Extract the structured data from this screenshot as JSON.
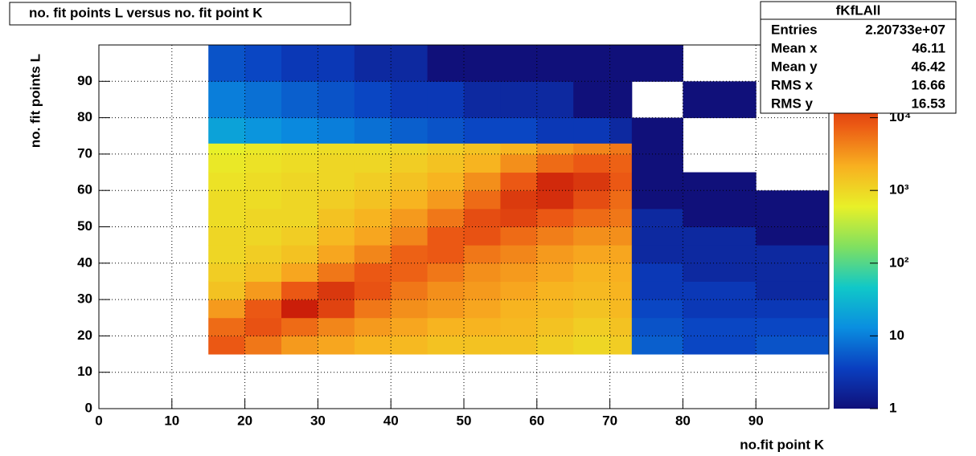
{
  "chart_data": {
    "type": "heatmap",
    "title": "no. fit points L versus no. fit point K",
    "x_label": "no.fit point K",
    "y_label": "no. fit points  L",
    "xlim": [
      0,
      100
    ],
    "ylim": [
      0,
      100
    ],
    "xticks": [
      0,
      10,
      20,
      30,
      40,
      50,
      60,
      70,
      80,
      90
    ],
    "yticks": [
      0,
      10,
      20,
      30,
      40,
      50,
      60,
      70,
      80,
      90
    ],
    "grid": true,
    "log_z": true,
    "zlim": [
      1,
      100000
    ],
    "zticks": [
      1,
      10,
      {
        "value": 100,
        "label": "10²"
      },
      {
        "value": 1000,
        "label": "10³"
      },
      {
        "value": 10000,
        "label": "10⁴"
      }
    ],
    "palette": [
      "#10107a",
      "#0a3fc0",
      "#0a8ee0",
      "#10c8c8",
      "#80e060",
      "#e8f028",
      "#f8b020",
      "#ec5a14",
      "#c81808",
      "#700000"
    ],
    "xbins": [
      15,
      20,
      25,
      30,
      35,
      40,
      45,
      50,
      55,
      60,
      65,
      70,
      73,
      80,
      90,
      100
    ],
    "ybins": [
      15,
      20,
      25,
      30,
      35,
      40,
      45,
      50,
      55,
      60,
      65,
      70,
      73,
      80,
      90,
      100
    ],
    "z": [
      [
        8000,
        5000,
        3000,
        2500,
        2000,
        1800,
        1500,
        1500,
        1500,
        1200,
        1000,
        1200,
        6,
        4,
        5
      ],
      [
        6000,
        9000,
        6000,
        4000,
        3000,
        2500,
        2000,
        2000,
        1800,
        1500,
        1200,
        1500,
        5,
        4,
        4
      ],
      [
        3000,
        8000,
        25000,
        12000,
        5000,
        3500,
        3000,
        2500,
        2000,
        1800,
        1500,
        1800,
        4,
        3,
        3
      ],
      [
        1500,
        3000,
        8000,
        15000,
        9000,
        5000,
        3500,
        3000,
        2500,
        2000,
        1800,
        2000,
        3,
        3,
        2
      ],
      [
        1200,
        1500,
        2500,
        5000,
        8000,
        7000,
        5000,
        3500,
        3000,
        2500,
        2000,
        2200,
        3,
        2,
        2
      ],
      [
        1000,
        1200,
        1500,
        2500,
        4000,
        7000,
        8000,
        5000,
        4000,
        3000,
        2500,
        2500,
        2,
        2,
        2
      ],
      [
        1000,
        1000,
        1200,
        1800,
        2500,
        4000,
        8000,
        9000,
        6000,
        4500,
        3500,
        3500,
        2,
        2,
        1
      ],
      [
        900,
        1000,
        1000,
        1500,
        2000,
        3000,
        5000,
        10000,
        12000,
        8000,
        6000,
        5000,
        2,
        1,
        1
      ],
      [
        900,
        900,
        1000,
        1200,
        1500,
        2000,
        3000,
        6000,
        14000,
        18000,
        10000,
        6000,
        1,
        1,
        1
      ],
      [
        800,
        900,
        1000,
        1000,
        1200,
        1500,
        2000,
        3500,
        8000,
        20000,
        15000,
        8000,
        1,
        1,
        null
      ],
      [
        700,
        800,
        900,
        1000,
        1000,
        1200,
        1500,
        2000,
        3500,
        6000,
        8000,
        7000,
        1,
        null,
        null
      ],
      [
        600,
        700,
        800,
        900,
        900,
        1000,
        1200,
        1500,
        2000,
        3000,
        4000,
        5000,
        1,
        null,
        null
      ],
      [
        20,
        15,
        12,
        10,
        8,
        6,
        5,
        4,
        4,
        3,
        3,
        2,
        1,
        null,
        null
      ],
      [
        10,
        8,
        6,
        5,
        4,
        3,
        3,
        2,
        2,
        2,
        1,
        1,
        null,
        1,
        null
      ],
      [
        5,
        4,
        3,
        3,
        2,
        2,
        1,
        1,
        1,
        1,
        1,
        1,
        1,
        null,
        null
      ]
    ],
    "stats": {
      "title": "fKfLAll",
      "rows": [
        [
          "Entries",
          "2.20733e+07"
        ],
        [
          "Mean x",
          "46.11"
        ],
        [
          "Mean y",
          "46.42"
        ],
        [
          "RMS x",
          "16.66"
        ],
        [
          "RMS y",
          "16.53"
        ]
      ]
    }
  }
}
